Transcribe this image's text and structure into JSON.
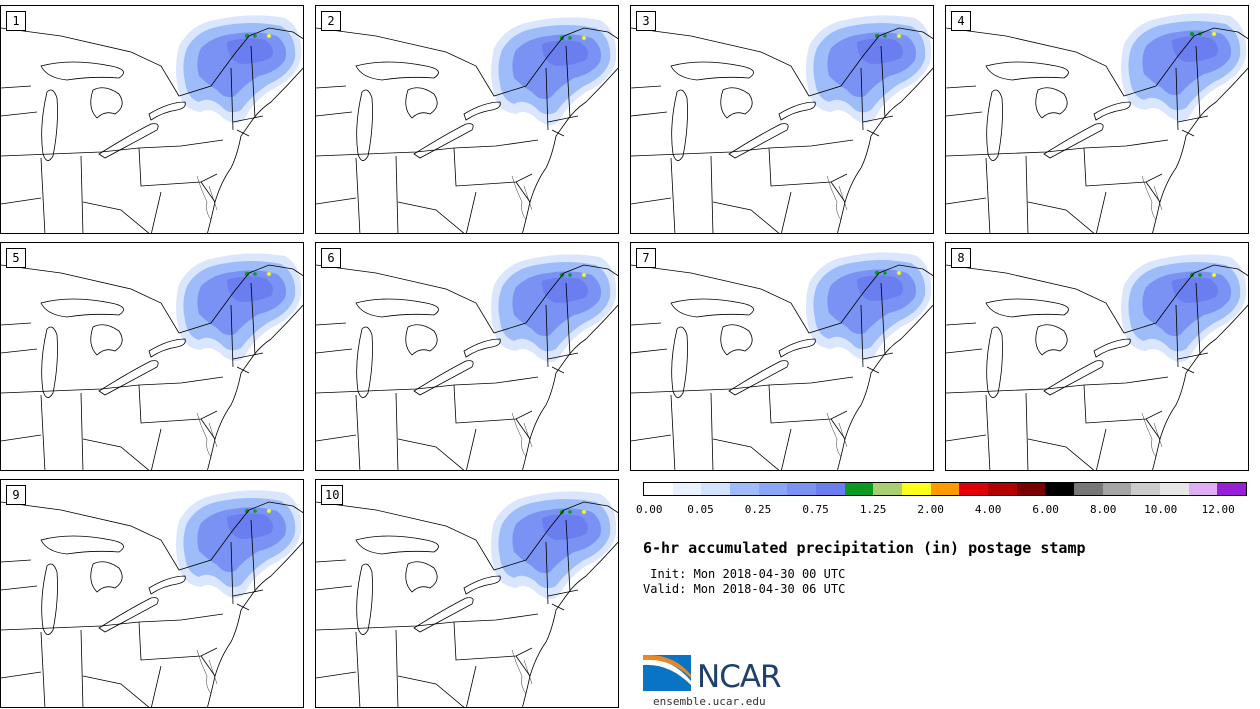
{
  "panels": [
    {
      "label": "1"
    },
    {
      "label": "2"
    },
    {
      "label": "3"
    },
    {
      "label": "4"
    },
    {
      "label": "5"
    },
    {
      "label": "6"
    },
    {
      "label": "7"
    },
    {
      "label": "8"
    },
    {
      "label": "9"
    },
    {
      "label": "10"
    }
  ],
  "colorbar": {
    "colors": [
      "#ffffff",
      "#eaf2ff",
      "#d3e2fd",
      "#9ebcf9",
      "#88a8f7",
      "#7a92f4",
      "#6a7ef0",
      "#0a9a1e",
      "#a9cf6e",
      "#ffff1a",
      "#ff9b00",
      "#e0000a",
      "#b40000",
      "#7a0000",
      "#000000",
      "#777777",
      "#a4a4a4",
      "#cbcbcb",
      "#e7e7e7",
      "#e0aef4",
      "#9a1ed8"
    ],
    "tick_labels": [
      "0.00",
      "0.05",
      "0.25",
      "0.75",
      "1.25",
      "2.00",
      "4.00",
      "6.00",
      "8.00",
      "10.00",
      "12.00"
    ]
  },
  "title": "6-hr accumulated precipitation (in) postage stamp",
  "init_line": " Init: Mon 2018-04-30 00 UTC",
  "valid_line": "Valid: Mon 2018-04-30 06 UTC",
  "logo_text": "NCAR",
  "site": "ensemble.ucar.edu"
}
